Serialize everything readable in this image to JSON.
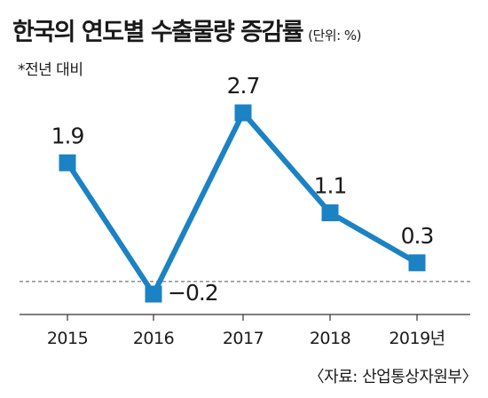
{
  "header": {
    "title": "한국의 연도별 수출물량 증감률",
    "unit": "(단위: %)",
    "note": "*전년 대비"
  },
  "source": "〈자료: 산업통상자원부〉",
  "colors": {
    "line": "#1b82c4",
    "marker": "#1b82c4",
    "axis": "#333333",
    "text": "#1a1a1a"
  },
  "chart_data": {
    "type": "line",
    "title": "한국의 연도별 수출물량 증감률",
    "categories": [
      "2015",
      "2016",
      "2017",
      "2018",
      "2019년"
    ],
    "series": [
      {
        "values": [
          1.9,
          -0.2,
          2.7,
          1.1,
          0.3
        ]
      }
    ],
    "data_labels": [
      "1.9",
      "−0.2",
      "2.7",
      "1.1",
      "0.3"
    ],
    "ylim": [
      -0.6,
      3.0
    ],
    "baseline": 0,
    "baseline_style": "dashed",
    "grid": false,
    "legend": "none"
  }
}
